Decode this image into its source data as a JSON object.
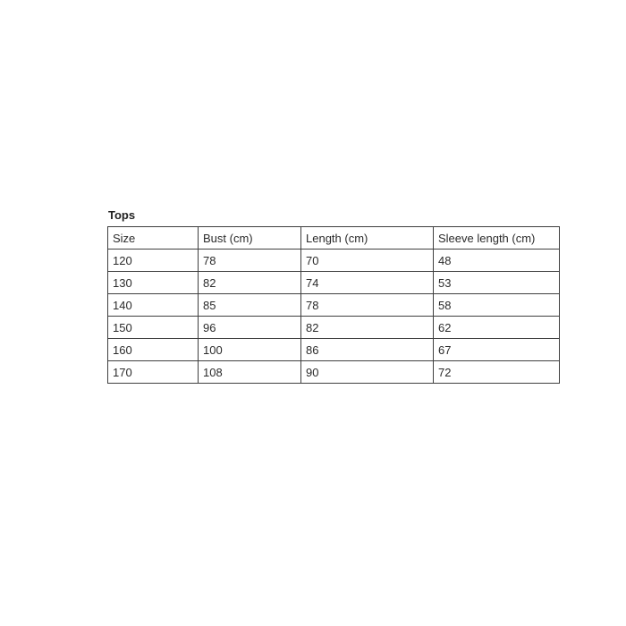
{
  "title": "Tops",
  "table": {
    "columns": [
      "Size",
      "Bust (cm)",
      "Length (cm)",
      "Sleeve length (cm)"
    ],
    "rows": [
      [
        "120",
        "78",
        "70",
        "48"
      ],
      [
        "130",
        "82",
        "74",
        "53"
      ],
      [
        "140",
        "85",
        "78",
        "58"
      ],
      [
        "150",
        "96",
        "82",
        "62"
      ],
      [
        "160",
        "100",
        "86",
        "67"
      ],
      [
        "170",
        "108",
        "90",
        "72"
      ]
    ]
  },
  "chart_data": {
    "type": "table",
    "title": "Tops",
    "columns": [
      "Size",
      "Bust (cm)",
      "Length (cm)",
      "Sleeve length (cm)"
    ],
    "rows": [
      [
        120,
        78,
        70,
        48
      ],
      [
        130,
        82,
        74,
        53
      ],
      [
        140,
        85,
        78,
        58
      ],
      [
        150,
        96,
        82,
        62
      ],
      [
        160,
        100,
        86,
        67
      ],
      [
        170,
        108,
        90,
        72
      ]
    ]
  },
  "colors": {
    "background": "#ffffff",
    "border": "#3f3f3f",
    "text": "#2b2b2b"
  }
}
